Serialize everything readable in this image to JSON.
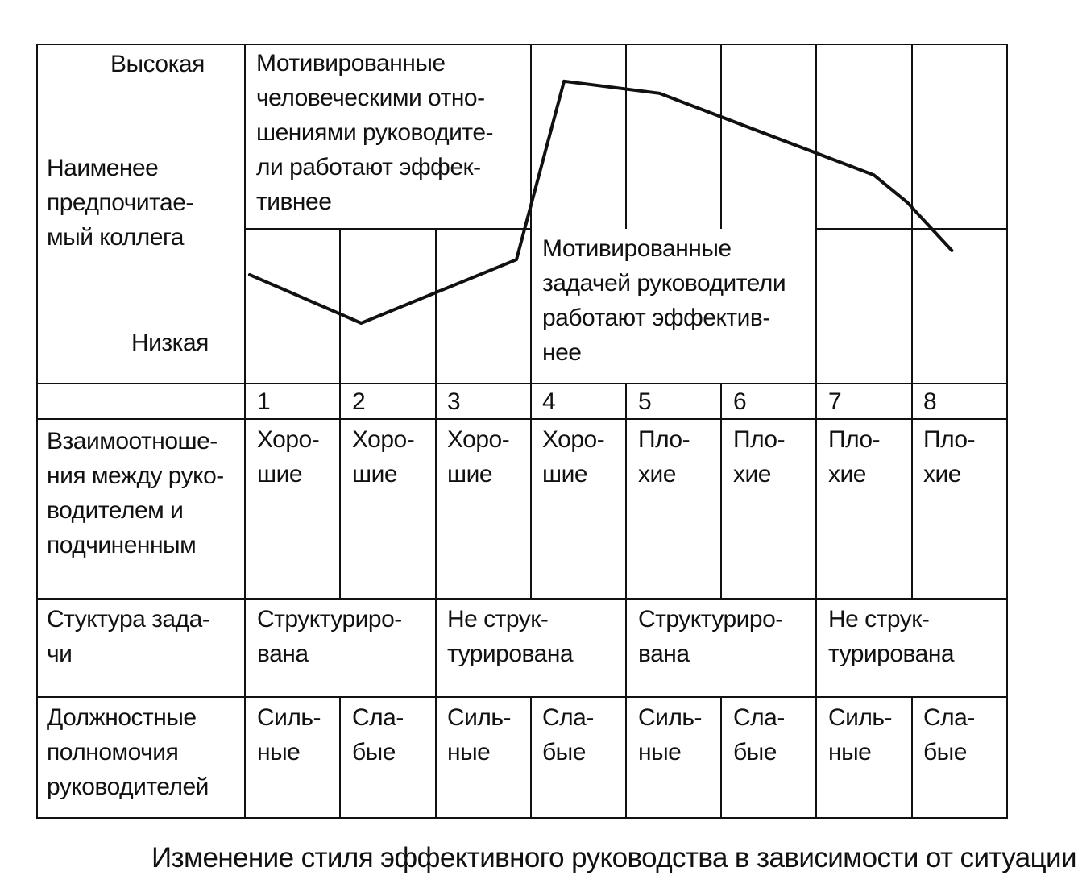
{
  "axis": {
    "high": "Высокая",
    "label": "Наименее\nпредпочитае-\nмый коллега",
    "low": "Низкая"
  },
  "regions": {
    "relations_motivated": "Мотивированные\nчеловеческими отно-\nшениями руководите-\nли работают эффек-\nтивнее",
    "task_motivated": "Мотивированные\nзадачей руководители\nработают эффектив-\nнее"
  },
  "situations": [
    "1",
    "2",
    "3",
    "4",
    "5",
    "6",
    "7",
    "8"
  ],
  "rows": {
    "relations": {
      "label": "Взаимоотноше-\nния между руко-\nводителем и\nподчиненным",
      "values": [
        "Хоро-\nшие",
        "Хоро-\nшие",
        "Хоро-\nшие",
        "Хоро-\nшие",
        "Пло-\nхие",
        "Пло-\nхие",
        "Пло-\nхие",
        "Пло-\nхие"
      ]
    },
    "structure": {
      "label": "Стуктура зада-\nчи",
      "values": [
        "Структуриро-\nвана",
        "Не струк-\nтурирована",
        "Структуриро-\nвана",
        "Не струк-\nтурирована"
      ]
    },
    "authority": {
      "label": "Должностные\nполномочия\nруководителей",
      "values": [
        "Силь-\nные",
        "Сла-\nбые",
        "Силь-\nные",
        "Сла-\nбые",
        "Силь-\nные",
        "Сла-\nбые",
        "Силь-\nные",
        "Сла-\nбые"
      ]
    }
  },
  "curve": {
    "series": [
      {
        "x": 0.05,
        "y": 0.36
      },
      {
        "x": 1.22,
        "y": 0.2
      },
      {
        "x": 2.85,
        "y": 0.41
      },
      {
        "x": 3.35,
        "y": 1.0
      },
      {
        "x": 4.35,
        "y": 0.96
      },
      {
        "x": 6.6,
        "y": 0.69
      },
      {
        "x": 6.95,
        "y": 0.6
      },
      {
        "x": 7.42,
        "y": 0.44
      }
    ],
    "color": "#111111"
  },
  "caption": "Изменение стиля эффективного руководства в зависимости от ситуации"
}
